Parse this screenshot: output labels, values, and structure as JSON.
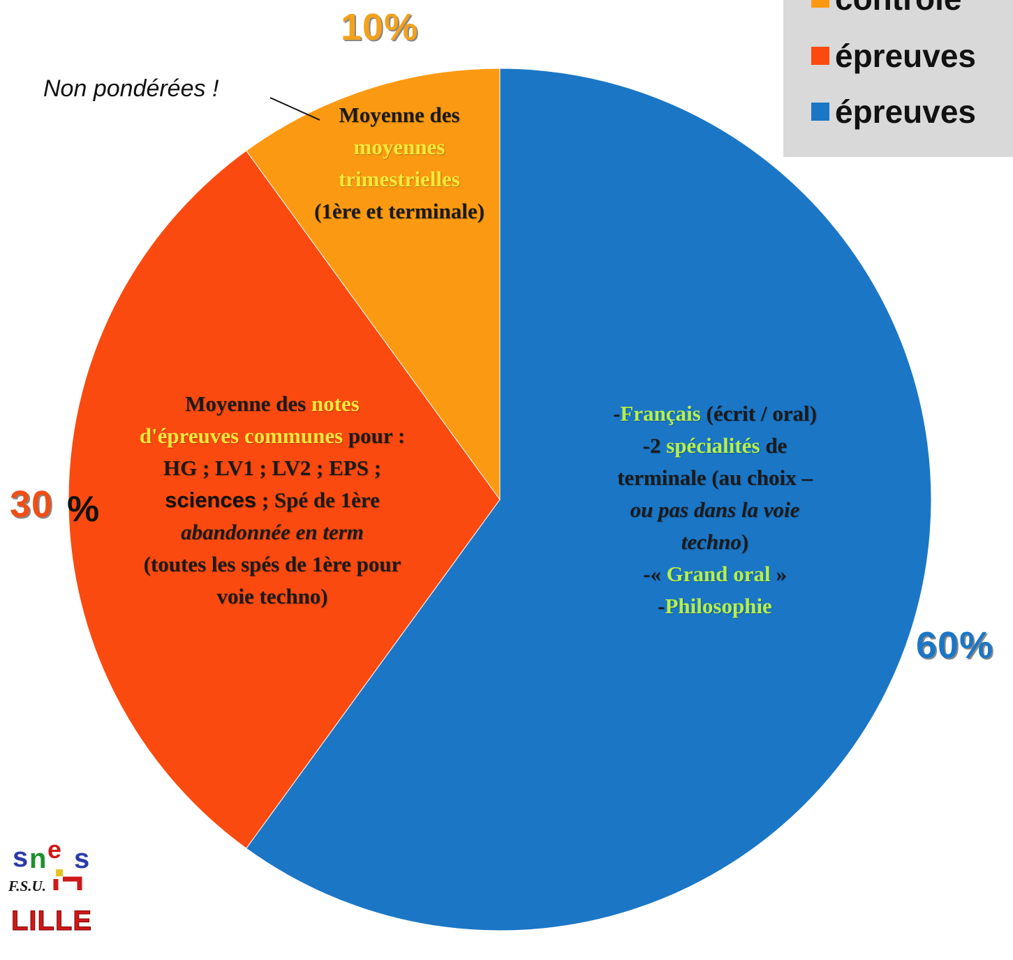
{
  "chart_data": {
    "type": "pie",
    "slices": [
      {
        "label": "épreuves",
        "value": 60,
        "pct_label": "60",
        "pct_sign": "%",
        "color": "#1b76c6"
      },
      {
        "label": "épreuves",
        "value": 30,
        "pct_label": "30",
        "pct_sign": "%",
        "color": "#fb4a10"
      },
      {
        "label": "contrôle",
        "value": 10,
        "pct_label": "10%",
        "color": "#fb9a12"
      }
    ],
    "start_angle_deg": 0,
    "direction": "clockwise",
    "legend": {
      "placement": "top-right",
      "items": [
        {
          "label": "contrôle",
          "color": "#fb9a12"
        },
        {
          "label": "épreuves",
          "color": "#fb4a10"
        },
        {
          "label": "épreuves",
          "color": "#1b76c6"
        }
      ]
    }
  },
  "note": "Non pondérées !",
  "slice_text": {
    "s10": {
      "l1": "Moyenne des",
      "l2": "moyennes",
      "l3": "trimestrielles",
      "l4": "(1ère et terminale)"
    },
    "s30": {
      "l1a": "Moyenne des ",
      "l1b": "notes",
      "l2a": "d'épreuves communes",
      "l2b": " pour :",
      "l3": "HG ; LV1 ; LV2 ; EPS ;",
      "l4a": "sciences",
      "l4b": " ; Spé de 1ère",
      "l5": "abandonnée en term",
      "l6": "(toutes les spés de 1ère pour",
      "l7": "voie techno)"
    },
    "s60": {
      "l1a": "-",
      "l1b": "Français",
      "l1c": " (écrit / oral)",
      "l2a": "-2 ",
      "l2b": "spécialités",
      "l2c": " de",
      "l3": "terminale (au choix –",
      "l4": "ou pas dans la voie",
      "l5": "techno",
      "l5b": ")",
      "l6a": "-« ",
      "l6b": "Grand oral",
      "l6c": " »",
      "l7a": "-",
      "l7b": "Philosophie"
    }
  },
  "logo": {
    "mark": "snes",
    "org": "F.S.U.",
    "city": "LILLE"
  }
}
